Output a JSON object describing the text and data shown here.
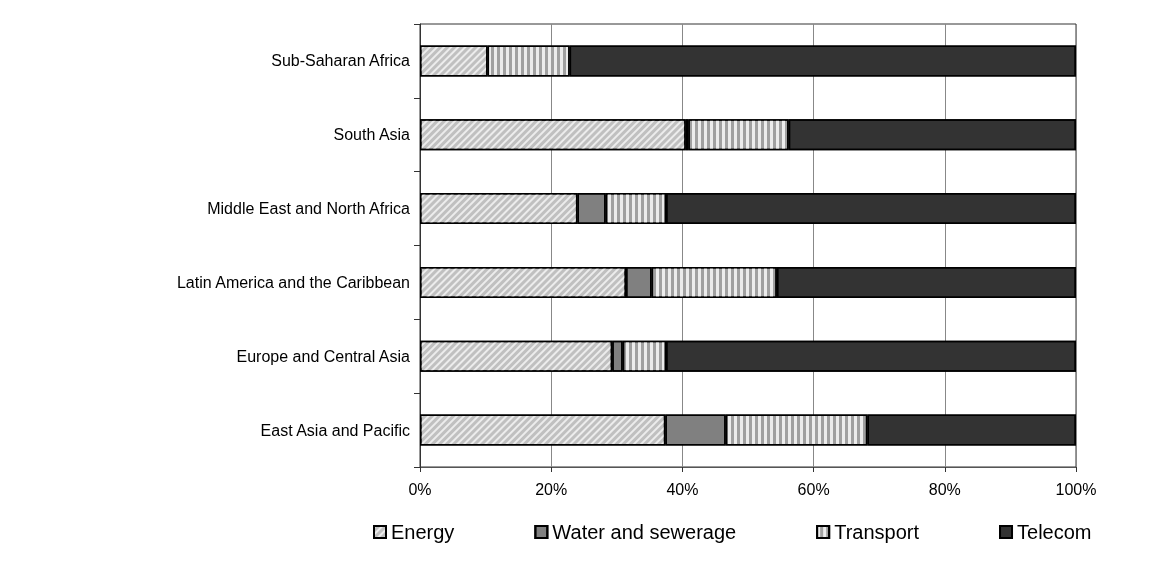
{
  "chart_data": {
    "type": "bar",
    "orientation": "horizontal",
    "stacked": true,
    "categories": [
      "Sub-Saharan Africa",
      "South Asia",
      "Middle East and North Africa",
      "Latin America and the Caribbean",
      "Europe and Central Asia",
      "East Asia and Pacific"
    ],
    "series": [
      {
        "name": "Energy",
        "color": "#c0c0c0",
        "values": [
          10.3,
          40.5,
          24.0,
          31.4,
          29.3,
          37.4
        ]
      },
      {
        "name": "Water and sewerage",
        "color": "#808080",
        "values": [
          null,
          0.4,
          4.3,
          3.9,
          1.6,
          9.2
        ]
      },
      {
        "name": "Transport",
        "color": "#a0a0a0",
        "values": [
          12.5,
          15.3,
          9.2,
          19.1,
          6.6,
          21.6
        ]
      },
      {
        "name": "Telecom",
        "color": "#333333",
        "values": [
          77.2,
          43.8,
          62.5,
          45.6,
          62.5,
          31.8
        ]
      }
    ],
    "xlim": [
      0,
      100
    ],
    "xticks": [
      {
        "value": 0,
        "label": "0%"
      },
      {
        "value": 20,
        "label": "20%"
      },
      {
        "value": 40,
        "label": "40%"
      },
      {
        "value": 60,
        "label": "60%"
      },
      {
        "value": 80,
        "label": "80%"
      },
      {
        "value": 100,
        "label": "100%"
      }
    ],
    "grid": "x",
    "legend": "bottom"
  }
}
